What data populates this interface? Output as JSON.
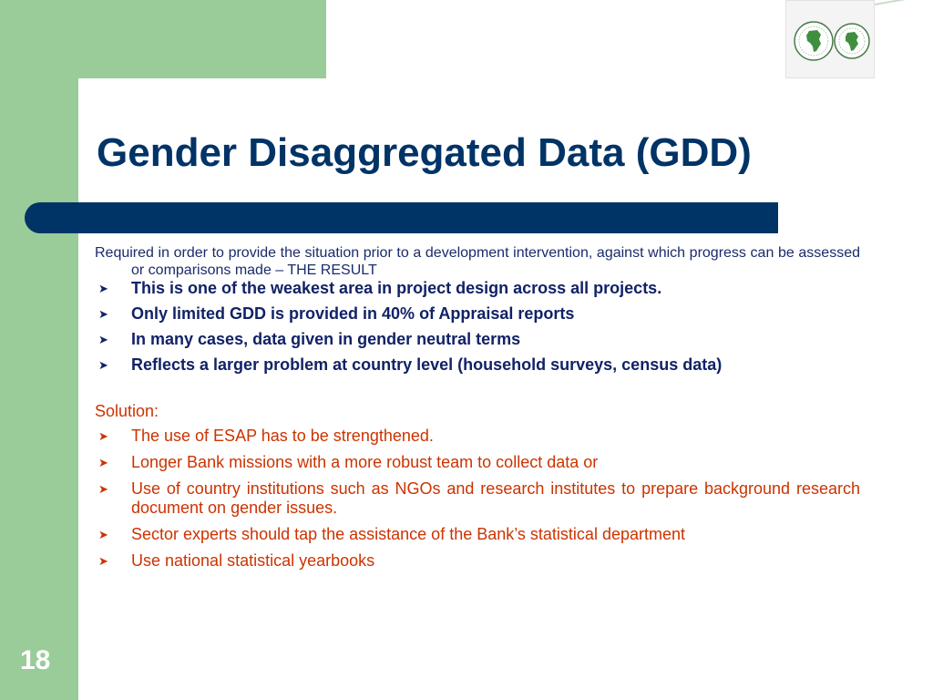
{
  "slide": {
    "title": "Gender Disaggregated Data (GDD)",
    "number": "18"
  },
  "intro": "Required in order to provide the situation prior to a development intervention, against which progress can be assessed or comparisons made – THE RESULT",
  "findings": [
    "This is one of the weakest area in project design across all projects.",
    "Only limited GDD is provided in 40% of Appraisal reports",
    "In many cases, data given in gender neutral terms",
    "Reflects a larger problem at country level (household surveys, census data)"
  ],
  "solution": {
    "label": "Solution:",
    "items": [
      "The use of ESAP has to be strengthened.",
      "Longer Bank missions with a more robust team to collect data or",
      "Use of country institutions such as NGOs and research institutes to prepare background research document on gender issues.",
      "Sector experts should tap the assistance of the Bank’s statistical department",
      "Use national statistical yearbooks"
    ]
  },
  "icons": {
    "bullet": "arrowhead-bullet-icon",
    "logo": "africa-map-logo-icon"
  },
  "colors": {
    "frame_green": "#99cc99",
    "title_blue": "#003366",
    "solution_red": "#cc3300"
  }
}
